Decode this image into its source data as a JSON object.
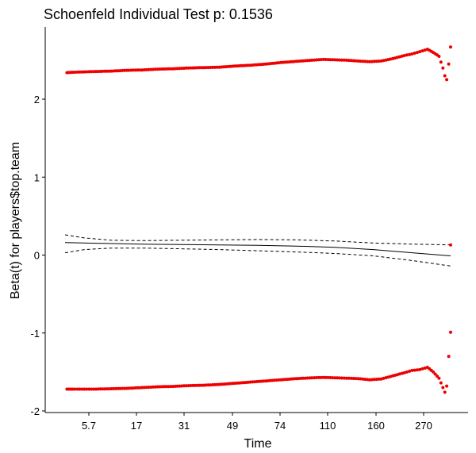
{
  "chart_data": {
    "type": "scatter",
    "title": "Schoenfeld Individual Test p: 0.1536",
    "xlabel": "Time",
    "ylabel": "Beta(t) for players$top.team",
    "x_tick_labels": [
      "5.7",
      "17",
      "31",
      "49",
      "74",
      "110",
      "160",
      "270"
    ],
    "y_ticks": [
      -2,
      -1,
      0,
      1,
      2
    ],
    "y_tick_labels": [
      "-2",
      "-1",
      "0",
      "1",
      "2"
    ],
    "ylim": [
      -2.0,
      2.9
    ],
    "xlim": [
      0,
      1
    ],
    "grid": false,
    "colors": {
      "points": "#ee0000",
      "lines": "#000000"
    },
    "series": [
      {
        "kind": "residuals-upper",
        "points": [
          [
            0.005,
            2.34
          ],
          [
            0.02,
            2.345
          ],
          [
            0.05,
            2.35
          ],
          [
            0.08,
            2.355
          ],
          [
            0.12,
            2.36
          ],
          [
            0.16,
            2.37
          ],
          [
            0.2,
            2.375
          ],
          [
            0.24,
            2.385
          ],
          [
            0.28,
            2.39
          ],
          [
            0.32,
            2.4
          ],
          [
            0.36,
            2.405
          ],
          [
            0.4,
            2.41
          ],
          [
            0.44,
            2.425
          ],
          [
            0.48,
            2.435
          ],
          [
            0.52,
            2.45
          ],
          [
            0.56,
            2.47
          ],
          [
            0.6,
            2.485
          ],
          [
            0.64,
            2.5
          ],
          [
            0.67,
            2.51
          ],
          [
            0.7,
            2.505
          ],
          [
            0.73,
            2.5
          ],
          [
            0.76,
            2.49
          ],
          [
            0.79,
            2.48
          ],
          [
            0.82,
            2.49
          ],
          [
            0.85,
            2.52
          ],
          [
            0.88,
            2.56
          ],
          [
            0.9,
            2.58
          ],
          [
            0.92,
            2.61
          ],
          [
            0.94,
            2.64
          ],
          [
            0.955,
            2.6
          ],
          [
            0.97,
            2.55
          ],
          [
            0.98,
            2.4
          ],
          [
            0.985,
            2.3
          ],
          [
            0.99,
            2.25
          ],
          [
            0.995,
            2.45
          ],
          [
            1.0,
            2.67
          ]
        ]
      },
      {
        "kind": "residuals-lower",
        "points": [
          [
            0.005,
            -1.72
          ],
          [
            0.02,
            -1.72
          ],
          [
            0.05,
            -1.72
          ],
          [
            0.08,
            -1.72
          ],
          [
            0.12,
            -1.715
          ],
          [
            0.16,
            -1.71
          ],
          [
            0.2,
            -1.7
          ],
          [
            0.24,
            -1.69
          ],
          [
            0.28,
            -1.685
          ],
          [
            0.32,
            -1.675
          ],
          [
            0.36,
            -1.67
          ],
          [
            0.4,
            -1.66
          ],
          [
            0.44,
            -1.645
          ],
          [
            0.48,
            -1.63
          ],
          [
            0.52,
            -1.615
          ],
          [
            0.56,
            -1.6
          ],
          [
            0.6,
            -1.585
          ],
          [
            0.64,
            -1.575
          ],
          [
            0.67,
            -1.57
          ],
          [
            0.7,
            -1.575
          ],
          [
            0.73,
            -1.58
          ],
          [
            0.76,
            -1.585
          ],
          [
            0.79,
            -1.6
          ],
          [
            0.82,
            -1.59
          ],
          [
            0.85,
            -1.55
          ],
          [
            0.88,
            -1.51
          ],
          [
            0.9,
            -1.48
          ],
          [
            0.92,
            -1.47
          ],
          [
            0.94,
            -1.44
          ],
          [
            0.955,
            -1.5
          ],
          [
            0.97,
            -1.58
          ],
          [
            0.98,
            -1.7
          ],
          [
            0.985,
            -1.76
          ],
          [
            0.99,
            -1.68
          ],
          [
            0.995,
            -1.3
          ],
          [
            1.0,
            -0.99
          ]
        ]
      },
      {
        "kind": "single-point",
        "points": [
          [
            1.0,
            0.13
          ]
        ]
      },
      {
        "kind": "smooth-fit",
        "points": [
          [
            0,
            0.16
          ],
          [
            0.1,
            0.15
          ],
          [
            0.2,
            0.14
          ],
          [
            0.3,
            0.135
          ],
          [
            0.4,
            0.13
          ],
          [
            0.5,
            0.125
          ],
          [
            0.6,
            0.115
          ],
          [
            0.7,
            0.1
          ],
          [
            0.8,
            0.07
          ],
          [
            0.9,
            0.03
          ],
          [
            1.0,
            -0.01
          ]
        ]
      },
      {
        "kind": "confidence-upper",
        "points": [
          [
            0,
            0.26
          ],
          [
            0.05,
            0.22
          ],
          [
            0.12,
            0.19
          ],
          [
            0.2,
            0.185
          ],
          [
            0.3,
            0.19
          ],
          [
            0.4,
            0.195
          ],
          [
            0.5,
            0.2
          ],
          [
            0.6,
            0.195
          ],
          [
            0.7,
            0.18
          ],
          [
            0.8,
            0.155
          ],
          [
            0.9,
            0.14
          ],
          [
            1.0,
            0.13
          ]
        ]
      },
      {
        "kind": "confidence-lower",
        "points": [
          [
            0,
            0.03
          ],
          [
            0.05,
            0.07
          ],
          [
            0.12,
            0.09
          ],
          [
            0.2,
            0.09
          ],
          [
            0.3,
            0.08
          ],
          [
            0.4,
            0.07
          ],
          [
            0.5,
            0.055
          ],
          [
            0.6,
            0.04
          ],
          [
            0.7,
            0.02
          ],
          [
            0.8,
            -0.01
          ],
          [
            0.9,
            -0.07
          ],
          [
            1.0,
            -0.14
          ]
        ]
      }
    ]
  }
}
